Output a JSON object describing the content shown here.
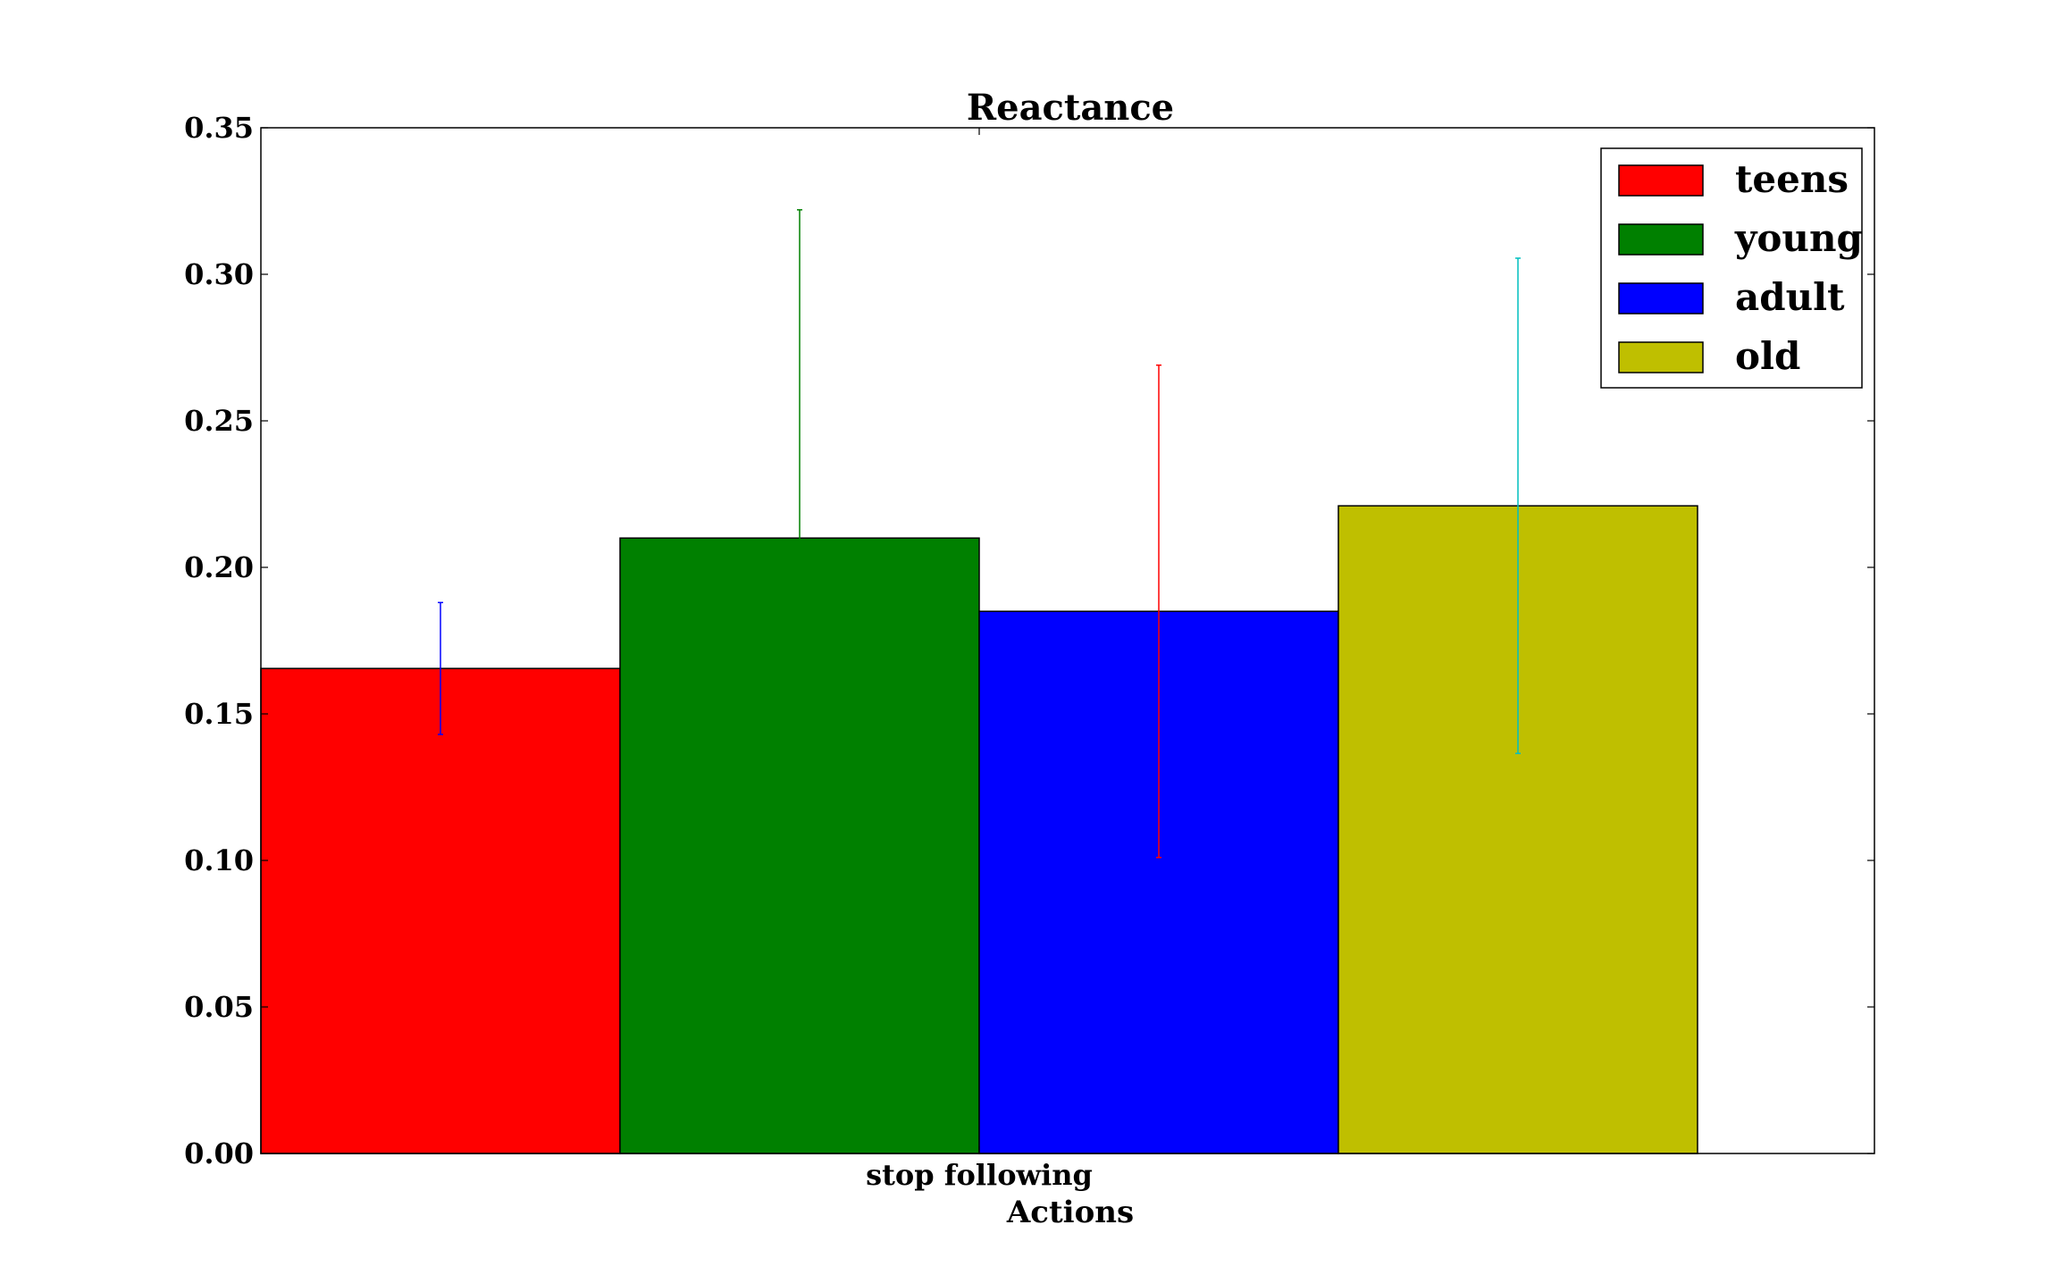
{
  "chart_data": {
    "type": "bar",
    "title": "Reactance",
    "xlabel": "Actions",
    "ylabel": "",
    "categories": [
      "stop following"
    ],
    "ylim": [
      0,
      0.35
    ],
    "yticks": [
      "0.00",
      "0.05",
      "0.10",
      "0.15",
      "0.20",
      "0.25",
      "0.30",
      "0.35"
    ],
    "grid": false,
    "legend_position": "top-right",
    "series": [
      {
        "name": "teens",
        "values": [
          0.1655
        ],
        "error": [
          0.0225
        ],
        "color": "#ff0000",
        "error_color": "#0000ff"
      },
      {
        "name": "young",
        "values": [
          0.21
        ],
        "error": [
          0.112
        ],
        "color": "#008000",
        "error_color": "#008000"
      },
      {
        "name": "adult",
        "values": [
          0.185
        ],
        "error": [
          0.084
        ],
        "color": "#0000ff",
        "error_color": "#ff0000"
      },
      {
        "name": "old",
        "values": [
          0.221
        ],
        "error": [
          0.0845
        ],
        "color": "#bfbf00",
        "error_color": "#00bfbf"
      }
    ]
  }
}
